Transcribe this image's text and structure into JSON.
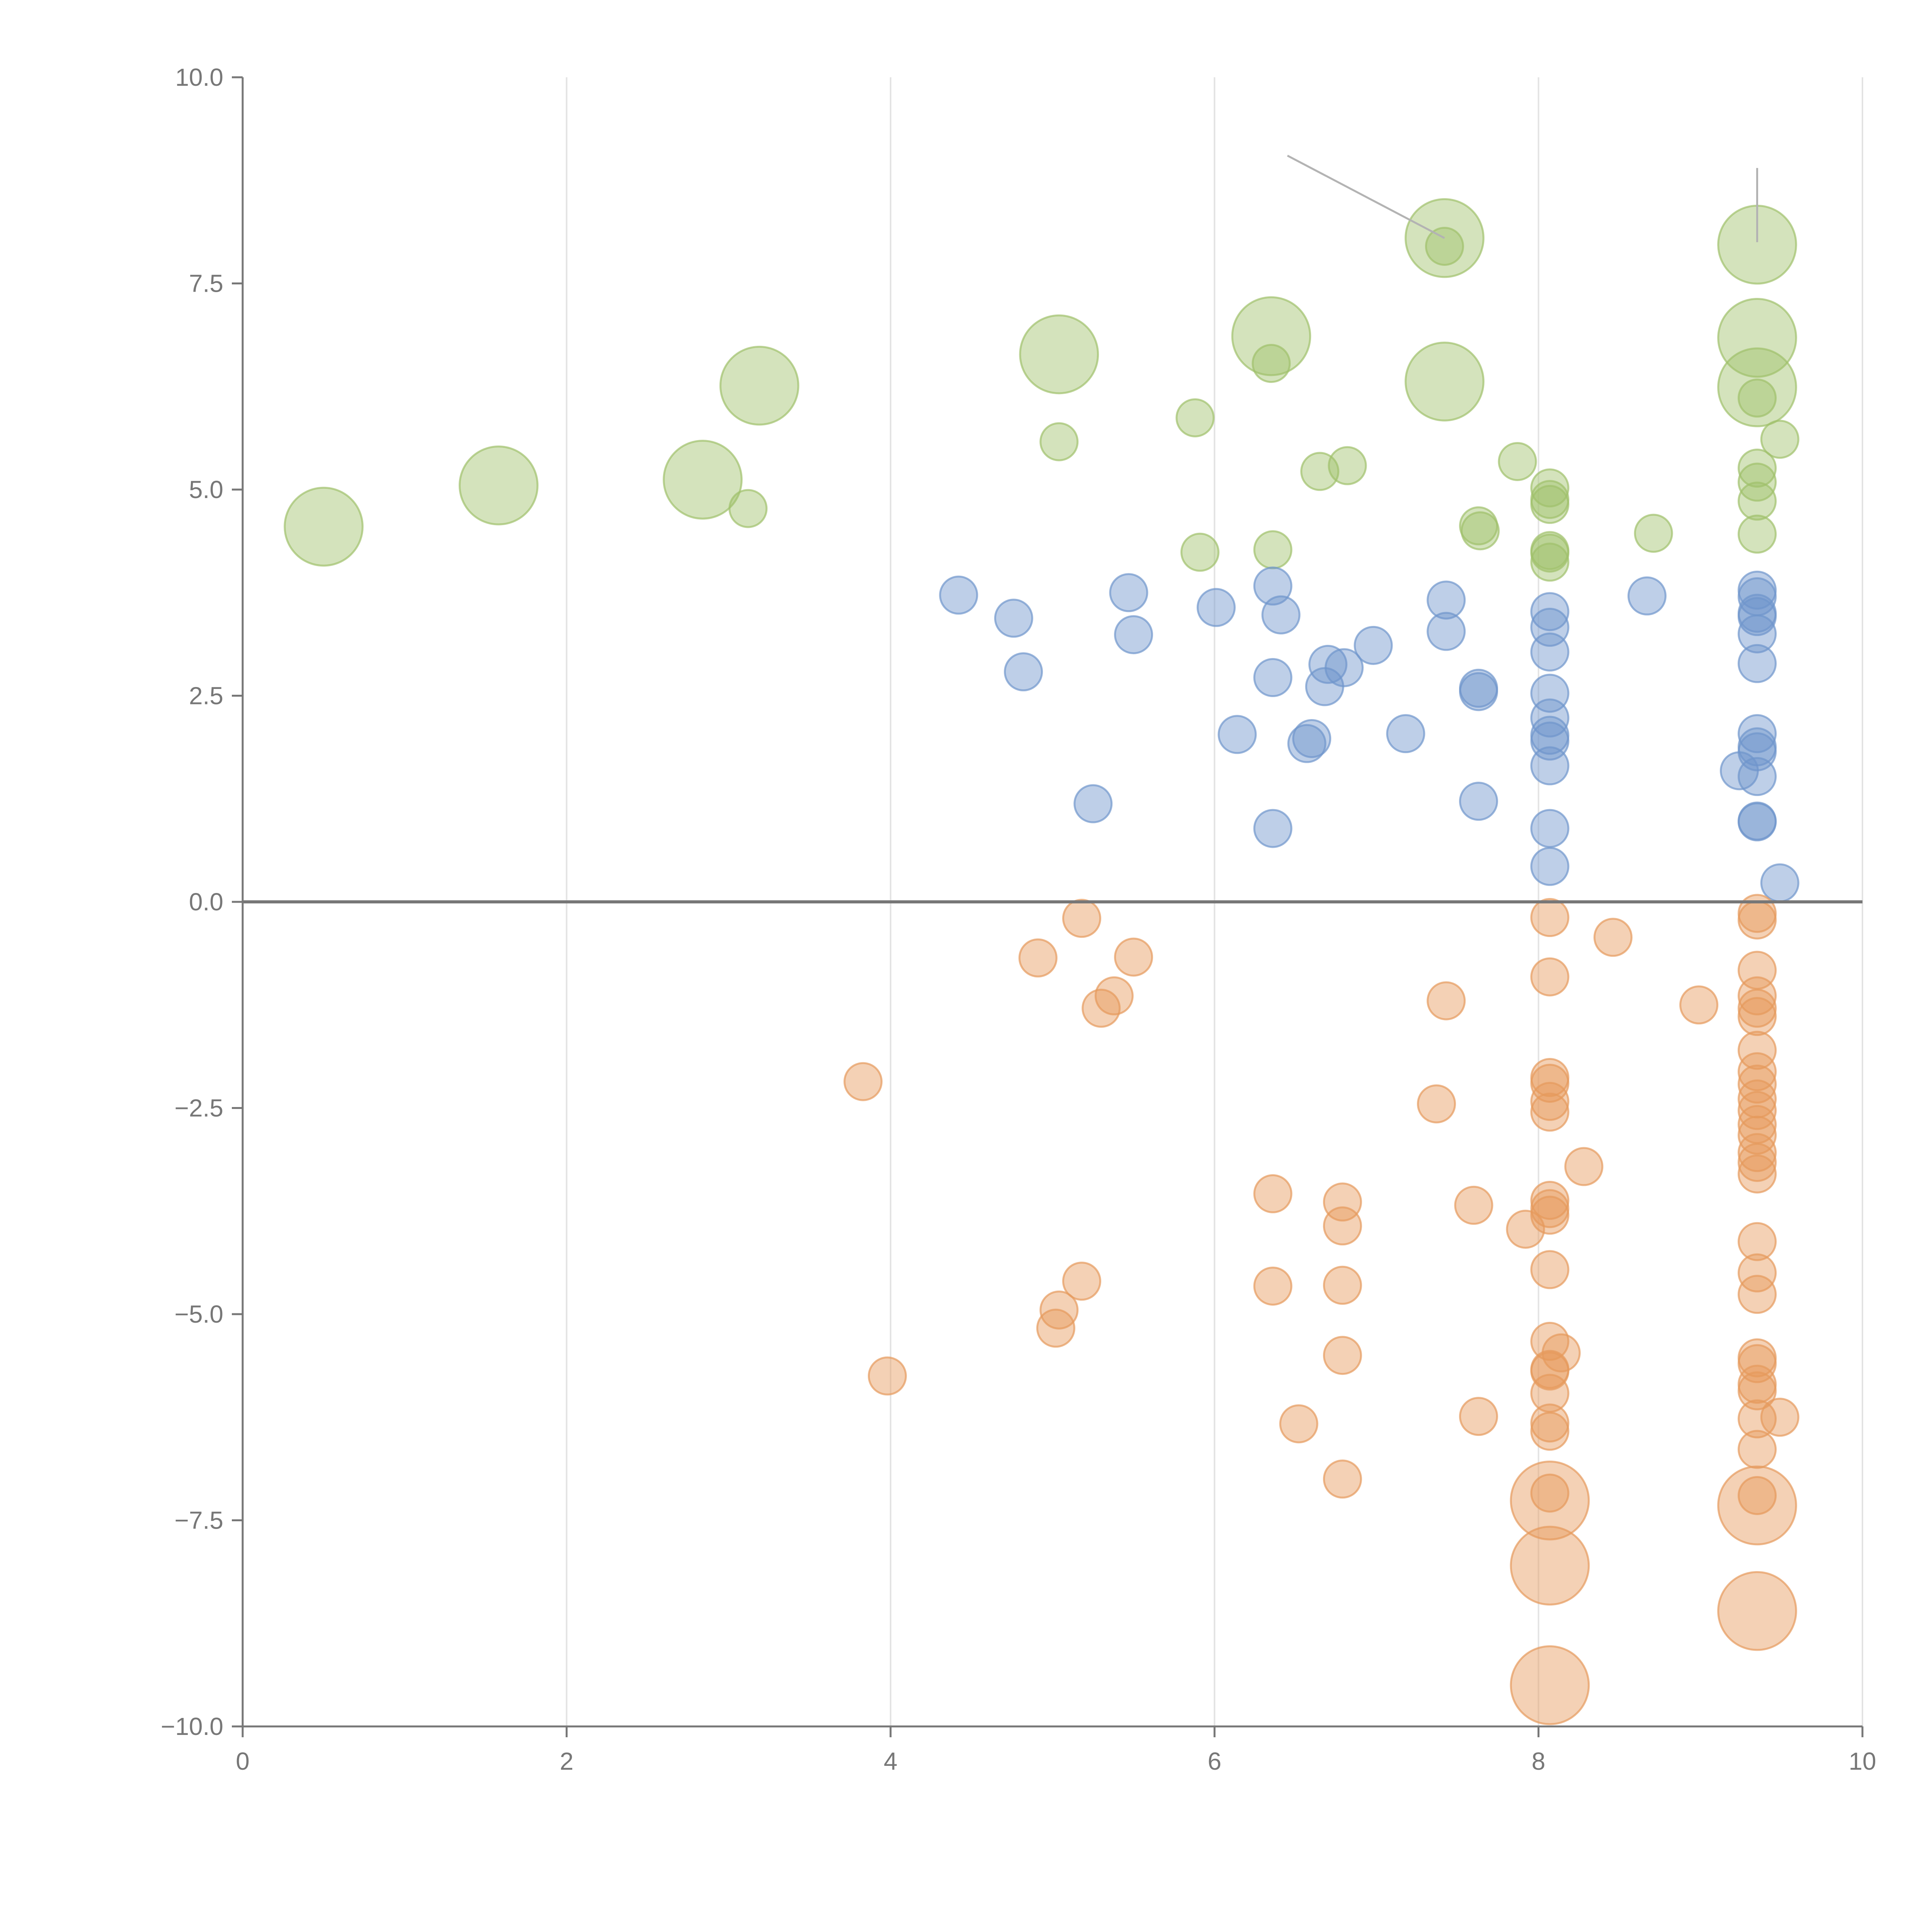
{
  "chart_data": {
    "type": "scatter",
    "title": "",
    "xlabel": "",
    "ylabel": "",
    "xlim": [
      0,
      10
    ],
    "ylim": [
      -10,
      10
    ],
    "grid": "vertical",
    "x_ticks": [
      "0",
      "2",
      "4",
      "6",
      "8",
      "10"
    ],
    "x_tick_values": [
      0,
      2,
      4,
      6,
      8,
      10
    ],
    "y_ticks": [
      "10.0",
      "7.5",
      "5.0",
      "2.5",
      "0.0",
      "−2.5",
      "−5.0",
      "−7.5",
      "−10.0"
    ],
    "y_tick_values": [
      10,
      7.5,
      5,
      2.5,
      0,
      -2.5,
      -5,
      -7.5,
      -10
    ],
    "series": [
      {
        "name": "green",
        "color": "#9fc16b",
        "points": [
          {
            "x": 0.5,
            "y": 4.55,
            "s": 2.1
          },
          {
            "x": 1.58,
            "y": 5.05,
            "s": 2.1
          },
          {
            "x": 2.84,
            "y": 5.12,
            "s": 2.1
          },
          {
            "x": 3.19,
            "y": 6.26,
            "s": 2.1
          },
          {
            "x": 3.12,
            "y": 4.77,
            "s": 1
          },
          {
            "x": 5.04,
            "y": 6.64,
            "s": 2.1
          },
          {
            "x": 5.04,
            "y": 5.58,
            "s": 1
          },
          {
            "x": 5.91,
            "y": 4.24,
            "s": 1
          },
          {
            "x": 5.88,
            "y": 5.87,
            "s": 1
          },
          {
            "x": 6.35,
            "y": 6.86,
            "s": 2.1
          },
          {
            "x": 6.35,
            "y": 6.53,
            "s": 1
          },
          {
            "x": 6.36,
            "y": 4.27,
            "s": 1
          },
          {
            "x": 6.65,
            "y": 5.22,
            "s": 1
          },
          {
            "x": 6.82,
            "y": 5.29,
            "s": 1
          },
          {
            "x": 7.42,
            "y": 8.05,
            "s": 2.1
          },
          {
            "x": 7.42,
            "y": 7.95,
            "s": 1
          },
          {
            "x": 7.42,
            "y": 6.31,
            "s": 2.1
          },
          {
            "x": 7.63,
            "y": 4.56,
            "s": 1
          },
          {
            "x": 7.64,
            "y": 4.5,
            "s": 1
          },
          {
            "x": 7.87,
            "y": 5.34,
            "s": 1
          },
          {
            "x": 8.07,
            "y": 5.02,
            "s": 1
          },
          {
            "x": 8.07,
            "y": 4.88,
            "s": 1
          },
          {
            "x": 8.07,
            "y": 4.82,
            "s": 1
          },
          {
            "x": 8.07,
            "y": 4.26,
            "s": 1
          },
          {
            "x": 8.07,
            "y": 4.23,
            "s": 1
          },
          {
            "x": 8.07,
            "y": 4.12,
            "s": 1
          },
          {
            "x": 8.71,
            "y": 4.47,
            "s": 1
          },
          {
            "x": 9.35,
            "y": 7.97,
            "s": 2.1
          },
          {
            "x": 9.35,
            "y": 6.84,
            "s": 2.1
          },
          {
            "x": 9.35,
            "y": 6.24,
            "s": 2.1
          },
          {
            "x": 9.35,
            "y": 6.11,
            "s": 1
          },
          {
            "x": 9.49,
            "y": 5.61,
            "s": 1
          },
          {
            "x": 9.35,
            "y": 5.26,
            "s": 1
          },
          {
            "x": 9.35,
            "y": 5.09,
            "s": 1
          },
          {
            "x": 9.35,
            "y": 4.86,
            "s": 1
          },
          {
            "x": 9.35,
            "y": 4.46,
            "s": 1
          }
        ]
      },
      {
        "name": "blue",
        "color": "#6f95cc",
        "points": [
          {
            "x": 4.42,
            "y": 3.72,
            "s": 1
          },
          {
            "x": 4.76,
            "y": 3.44,
            "s": 1
          },
          {
            "x": 4.82,
            "y": 2.79,
            "s": 1
          },
          {
            "x": 5.47,
            "y": 3.75,
            "s": 1
          },
          {
            "x": 5.5,
            "y": 3.24,
            "s": 1
          },
          {
            "x": 5.25,
            "y": 1.19,
            "s": 1
          },
          {
            "x": 6.01,
            "y": 3.57,
            "s": 1
          },
          {
            "x": 6.14,
            "y": 2.03,
            "s": 1
          },
          {
            "x": 6.36,
            "y": 3.83,
            "s": 1
          },
          {
            "x": 6.41,
            "y": 3.48,
            "s": 1
          },
          {
            "x": 6.36,
            "y": 2.72,
            "s": 1
          },
          {
            "x": 6.36,
            "y": 0.89,
            "s": 1
          },
          {
            "x": 6.6,
            "y": 1.98,
            "s": 1
          },
          {
            "x": 6.57,
            "y": 1.92,
            "s": 1
          },
          {
            "x": 6.7,
            "y": 2.88,
            "s": 1
          },
          {
            "x": 6.68,
            "y": 2.61,
            "s": 1
          },
          {
            "x": 6.8,
            "y": 2.84,
            "s": 1
          },
          {
            "x": 6.98,
            "y": 3.11,
            "s": 1
          },
          {
            "x": 7.18,
            "y": 2.04,
            "s": 1
          },
          {
            "x": 7.43,
            "y": 3.66,
            "s": 1
          },
          {
            "x": 7.43,
            "y": 3.28,
            "s": 1
          },
          {
            "x": 7.63,
            "y": 2.59,
            "s": 1
          },
          {
            "x": 7.63,
            "y": 2.55,
            "s": 1
          },
          {
            "x": 7.63,
            "y": 1.22,
            "s": 1
          },
          {
            "x": 8.07,
            "y": 3.52,
            "s": 1
          },
          {
            "x": 8.07,
            "y": 3.33,
            "s": 1
          },
          {
            "x": 8.07,
            "y": 3.03,
            "s": 1
          },
          {
            "x": 8.07,
            "y": 2.53,
            "s": 1
          },
          {
            "x": 8.07,
            "y": 2.23,
            "s": 1
          },
          {
            "x": 8.07,
            "y": 2.02,
            "s": 1
          },
          {
            "x": 8.07,
            "y": 1.95,
            "s": 1
          },
          {
            "x": 8.07,
            "y": 1.65,
            "s": 1
          },
          {
            "x": 8.07,
            "y": 0.89,
            "s": 1
          },
          {
            "x": 8.07,
            "y": 0.43,
            "s": 1
          },
          {
            "x": 8.67,
            "y": 3.71,
            "s": 1
          },
          {
            "x": 9.35,
            "y": 3.78,
            "s": 1
          },
          {
            "x": 9.35,
            "y": 3.7,
            "s": 1
          },
          {
            "x": 9.35,
            "y": 3.5,
            "s": 1
          },
          {
            "x": 9.35,
            "y": 3.46,
            "s": 1
          },
          {
            "x": 9.35,
            "y": 3.25,
            "s": 1
          },
          {
            "x": 9.35,
            "y": 2.89,
            "s": 1
          },
          {
            "x": 9.35,
            "y": 2.04,
            "s": 1
          },
          {
            "x": 9.35,
            "y": 1.88,
            "s": 1
          },
          {
            "x": 9.35,
            "y": 1.82,
            "s": 1
          },
          {
            "x": 9.24,
            "y": 1.59,
            "s": 1
          },
          {
            "x": 9.35,
            "y": 1.52,
            "s": 1
          },
          {
            "x": 9.35,
            "y": 0.98,
            "s": 1
          },
          {
            "x": 9.35,
            "y": 0.97,
            "s": 1
          },
          {
            "x": 9.49,
            "y": 0.23,
            "s": 1
          }
        ]
      },
      {
        "name": "orange",
        "color": "#e69a5c",
        "points": [
          {
            "x": 5.18,
            "y": -0.2,
            "s": 1
          },
          {
            "x": 4.91,
            "y": -0.68,
            "s": 1
          },
          {
            "x": 5.5,
            "y": -0.67,
            "s": 1
          },
          {
            "x": 5.38,
            "y": -1.14,
            "s": 1
          },
          {
            "x": 5.3,
            "y": -1.29,
            "s": 1
          },
          {
            "x": 3.83,
            "y": -2.18,
            "s": 1
          },
          {
            "x": 3.98,
            "y": -5.75,
            "s": 1
          },
          {
            "x": 5.18,
            "y": -4.6,
            "s": 1
          },
          {
            "x": 5.04,
            "y": -4.95,
            "s": 1
          },
          {
            "x": 5.02,
            "y": -5.17,
            "s": 1
          },
          {
            "x": 6.36,
            "y": -3.54,
            "s": 1
          },
          {
            "x": 6.36,
            "y": -4.66,
            "s": 1
          },
          {
            "x": 6.52,
            "y": -6.33,
            "s": 1
          },
          {
            "x": 6.79,
            "y": -3.64,
            "s": 1
          },
          {
            "x": 6.79,
            "y": -3.93,
            "s": 1
          },
          {
            "x": 6.79,
            "y": -4.65,
            "s": 1
          },
          {
            "x": 6.79,
            "y": -5.5,
            "s": 1
          },
          {
            "x": 6.79,
            "y": -7.0,
            "s": 1
          },
          {
            "x": 7.43,
            "y": -1.2,
            "s": 1
          },
          {
            "x": 7.37,
            "y": -2.45,
            "s": 1
          },
          {
            "x": 7.6,
            "y": -3.68,
            "s": 1
          },
          {
            "x": 7.63,
            "y": -6.24,
            "s": 1
          },
          {
            "x": 7.92,
            "y": -3.97,
            "s": 1
          },
          {
            "x": 8.07,
            "y": -0.19,
            "s": 1
          },
          {
            "x": 8.07,
            "y": -0.91,
            "s": 1
          },
          {
            "x": 8.07,
            "y": -2.13,
            "s": 1
          },
          {
            "x": 8.07,
            "y": -2.2,
            "s": 1
          },
          {
            "x": 8.07,
            "y": -2.42,
            "s": 1
          },
          {
            "x": 8.07,
            "y": -2.55,
            "s": 1
          },
          {
            "x": 8.07,
            "y": -3.62,
            "s": 1
          },
          {
            "x": 8.07,
            "y": -3.72,
            "s": 1
          },
          {
            "x": 8.07,
            "y": -3.8,
            "s": 1
          },
          {
            "x": 8.07,
            "y": -4.46,
            "s": 1
          },
          {
            "x": 8.07,
            "y": -5.33,
            "s": 1
          },
          {
            "x": 8.07,
            "y": -5.67,
            "s": 1
          },
          {
            "x": 8.07,
            "y": -5.69,
            "s": 1
          },
          {
            "x": 8.07,
            "y": -5.96,
            "s": 1
          },
          {
            "x": 8.07,
            "y": -6.32,
            "s": 1
          },
          {
            "x": 8.07,
            "y": -6.42,
            "s": 1
          },
          {
            "x": 8.07,
            "y": -7.17,
            "s": 1
          },
          {
            "x": 8.07,
            "y": -7.26,
            "s": 2.1
          },
          {
            "x": 8.07,
            "y": -8.05,
            "s": 2.1
          },
          {
            "x": 8.07,
            "y": -9.5,
            "s": 2.1
          },
          {
            "x": 8.14,
            "y": -5.47,
            "s": 1
          },
          {
            "x": 8.28,
            "y": -3.21,
            "s": 1
          },
          {
            "x": 8.46,
            "y": -0.43,
            "s": 1
          },
          {
            "x": 8.99,
            "y": -1.25,
            "s": 1
          },
          {
            "x": 9.35,
            "y": -0.14,
            "s": 1
          },
          {
            "x": 9.35,
            "y": -0.22,
            "s": 1
          },
          {
            "x": 9.35,
            "y": -0.83,
            "s": 1
          },
          {
            "x": 9.35,
            "y": -1.14,
            "s": 1
          },
          {
            "x": 9.35,
            "y": -1.29,
            "s": 1
          },
          {
            "x": 9.35,
            "y": -1.39,
            "s": 1
          },
          {
            "x": 9.35,
            "y": -1.8,
            "s": 1
          },
          {
            "x": 9.35,
            "y": -2.06,
            "s": 1
          },
          {
            "x": 9.35,
            "y": -2.21,
            "s": 1
          },
          {
            "x": 9.35,
            "y": -2.39,
            "s": 1
          },
          {
            "x": 9.35,
            "y": -2.53,
            "s": 1
          },
          {
            "x": 9.35,
            "y": -2.7,
            "s": 1
          },
          {
            "x": 9.35,
            "y": -2.83,
            "s": 1
          },
          {
            "x": 9.35,
            "y": -3.04,
            "s": 1
          },
          {
            "x": 9.35,
            "y": -3.16,
            "s": 1
          },
          {
            "x": 9.35,
            "y": -3.3,
            "s": 1
          },
          {
            "x": 9.35,
            "y": -4.12,
            "s": 1
          },
          {
            "x": 9.35,
            "y": -4.5,
            "s": 1
          },
          {
            "x": 9.35,
            "y": -4.76,
            "s": 1
          },
          {
            "x": 9.35,
            "y": -5.53,
            "s": 1
          },
          {
            "x": 9.35,
            "y": -5.6,
            "s": 1
          },
          {
            "x": 9.35,
            "y": -5.85,
            "s": 1
          },
          {
            "x": 9.35,
            "y": -5.93,
            "s": 1
          },
          {
            "x": 9.35,
            "y": -6.27,
            "s": 1
          },
          {
            "x": 9.35,
            "y": -6.64,
            "s": 1
          },
          {
            "x": 9.35,
            "y": -7.2,
            "s": 1
          },
          {
            "x": 9.35,
            "y": -7.32,
            "s": 2.1
          },
          {
            "x": 9.35,
            "y": -8.6,
            "s": 2.1
          },
          {
            "x": 9.49,
            "y": -6.25,
            "s": 1
          }
        ]
      }
    ],
    "annotations": [
      {
        "x1": 6.45,
        "y1": 9.05,
        "x2": 7.42,
        "y2": 8.05
      },
      {
        "x1": 9.35,
        "y1": 8.9,
        "x2": 9.35,
        "y2": 8.0
      }
    ]
  }
}
